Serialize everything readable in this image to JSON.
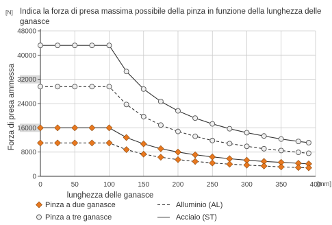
{
  "chart_data": {
    "type": "line",
    "title": "Indica la forza di presa massima possibile della pinza in funzione della lunghezza delle ganasce",
    "ylabel": "Forza di presa ammessa",
    "yunit": "[N]",
    "xlabel": "lunghezza delle ganasce",
    "xunit": "[mm]",
    "xlim": [
      0,
      400
    ],
    "ylim": [
      0,
      48000
    ],
    "xticks": [
      "0",
      "50",
      "100",
      "150",
      "200",
      "250",
      "300",
      "350",
      "400"
    ],
    "yticks": [
      "0",
      "8000",
      "16000",
      "24000",
      "32000",
      "40000",
      "48000"
    ],
    "highlighted_yticks": [
      "16000",
      "32000"
    ],
    "grid": true,
    "x": [
      0,
      25,
      50,
      75,
      100,
      125,
      150,
      175,
      200,
      225,
      250,
      275,
      300,
      325,
      350,
      375,
      390
    ],
    "series": [
      {
        "name": "Pinza a tre ganasce / Acciaio (ST)",
        "marker": "circle",
        "dash": "solid",
        "values": [
          43200,
          43200,
          43200,
          43200,
          43200,
          34600,
          28800,
          24700,
          21600,
          19200,
          17300,
          15700,
          14400,
          13300,
          12300,
          11500,
          11100
        ]
      },
      {
        "name": "Pinza a tre ganasce / Alluminio (AL)",
        "marker": "circle",
        "dash": "dashed",
        "values": [
          29600,
          29600,
          29600,
          29600,
          29600,
          23700,
          19700,
          16900,
          14800,
          13200,
          11800,
          10800,
          9900,
          9100,
          8500,
          7900,
          7600
        ]
      },
      {
        "name": "Pinza a due ganasce / Acciaio (ST)",
        "marker": "diamond",
        "dash": "solid",
        "values": [
          16000,
          16000,
          16000,
          16000,
          16000,
          12800,
          10700,
          9100,
          8000,
          7100,
          6400,
          5800,
          5300,
          4900,
          4600,
          4300,
          4100
        ]
      },
      {
        "name": "Pinza a due ganasce / Alluminio (AL)",
        "marker": "diamond",
        "dash": "dashed",
        "values": [
          11000,
          11000,
          11000,
          11000,
          11000,
          8800,
          7300,
          6300,
          5500,
          4900,
          4400,
          4000,
          3700,
          3400,
          3100,
          2900,
          2800
        ]
      }
    ],
    "legend": {
      "placement": "bottom",
      "entries": [
        {
          "label": "Pinza a due ganasce",
          "symbol": "diamond"
        },
        {
          "label": "Alluminio (AL)",
          "symbol": "dashed-line"
        },
        {
          "label": "Pinza a tre ganasce",
          "symbol": "circle"
        },
        {
          "label": "Acciaio (ST)",
          "symbol": "solid-line"
        }
      ]
    },
    "colors": {
      "line": "#333333",
      "diamond_fill": "#e8781f",
      "circle_fill": "#eeeeee",
      "grid": "#cccccc",
      "highlight_band": "#d9d9d9"
    }
  }
}
